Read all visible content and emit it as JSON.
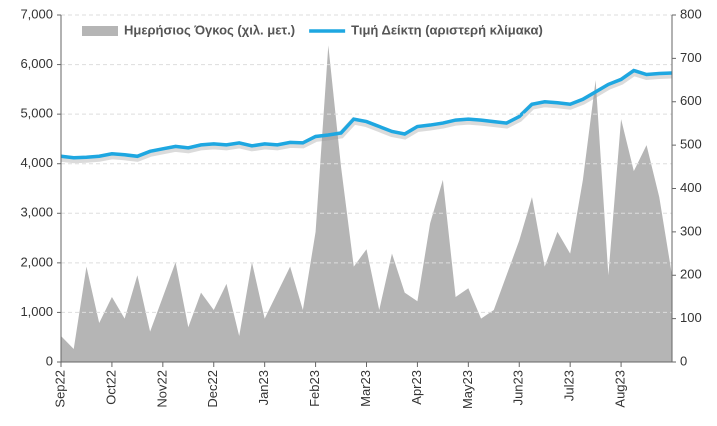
{
  "chart_data": {
    "type": "area_line",
    "categories": [
      "Sep22",
      null,
      null,
      null,
      "Oct22",
      null,
      null,
      null,
      "Nov22",
      null,
      null,
      null,
      "Dec22",
      null,
      null,
      null,
      "Jan23",
      null,
      null,
      null,
      "Feb23",
      null,
      null,
      null,
      "Mar23",
      null,
      null,
      null,
      "Apr23",
      null,
      null,
      null,
      "May23",
      null,
      null,
      null,
      "Jun23",
      null,
      null,
      null,
      "Jul23",
      null,
      null,
      null,
      "Aug23",
      null,
      null,
      null,
      null
    ],
    "series": [
      {
        "name": "Ημερήσιος Όγκος (χιλ. μετ.)",
        "color": "#b5b5b5",
        "axis": "y2",
        "kind": "area",
        "values": [
          60,
          30,
          220,
          90,
          150,
          100,
          200,
          70,
          150,
          230,
          80,
          160,
          120,
          180,
          60,
          230,
          100,
          160,
          220,
          120,
          300,
          730,
          450,
          220,
          260,
          120,
          250,
          160,
          140,
          320,
          420,
          150,
          170,
          100,
          120,
          200,
          280,
          380,
          220,
          300,
          250,
          420,
          650,
          200,
          560,
          440,
          500,
          380,
          200
        ]
      },
      {
        "name": "Τιμή Δείκτη (αριστερή κλίμακα)",
        "color": "#1ea7e1",
        "kind": "line",
        "values": [
          4150,
          4120,
          4130,
          4150,
          4200,
          4180,
          4150,
          4250,
          4300,
          4350,
          4320,
          4380,
          4400,
          4380,
          4420,
          4360,
          4400,
          4380,
          4430,
          4420,
          4550,
          4580,
          4620,
          4900,
          4850,
          4750,
          4650,
          4600,
          4750,
          4780,
          4820,
          4880,
          4900,
          4880,
          4850,
          4820,
          4950,
          5200,
          5250,
          5230,
          5200,
          5300,
          5450,
          5600,
          5700,
          5880,
          5800,
          5820,
          5830
        ]
      }
    ],
    "ylim": [
      0,
      7000
    ],
    "yticks": [
      0,
      {
        "value": 1000,
        "label": "1,000"
      },
      {
        "value": 2000,
        "label": "2,000"
      },
      {
        "value": 3000,
        "label": "3,000"
      },
      {
        "value": 4000,
        "label": "4,000"
      },
      {
        "value": 5000,
        "label": "5,000"
      },
      {
        "value": 6000,
        "label": "6,000"
      },
      {
        "value": 7000,
        "label": "7,000"
      }
    ],
    "y2lim": [
      0,
      800
    ],
    "y2ticks": [
      0,
      100,
      200,
      300,
      400,
      500,
      600,
      700,
      800
    ],
    "grid": true,
    "legend": "top"
  }
}
